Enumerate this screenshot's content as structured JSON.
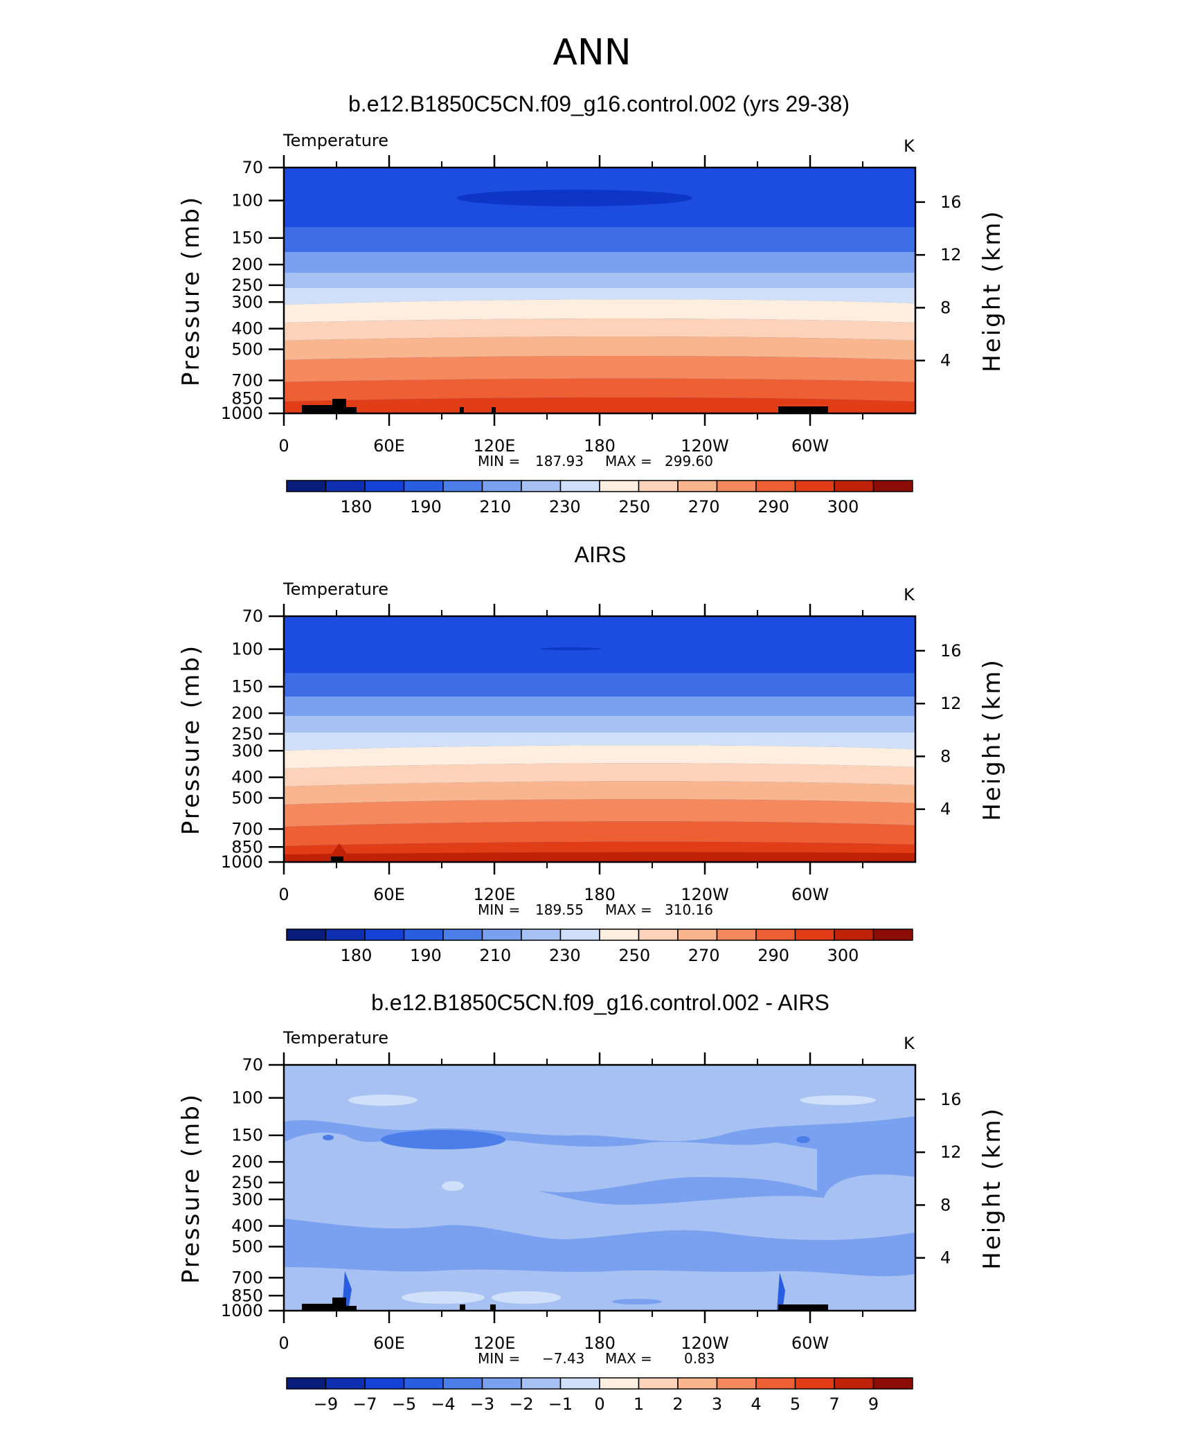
{
  "title": "ANN",
  "colors": {
    "temp_levels": [
      "#081d7a",
      "#0d2fb0",
      "#1442d6",
      "#2a5ee0",
      "#4b7ee8",
      "#7aa1ef",
      "#a7c1f3",
      "#cfe0f8",
      "#fdeee0",
      "#fcd3b8",
      "#f9b58e",
      "#f4895e",
      "#ee5f34",
      "#e13e18",
      "#c02208",
      "#8c0d05"
    ],
    "diff_levels": [
      "#081d7a",
      "#0d2fb0",
      "#1442d6",
      "#2a5ee0",
      "#4b7ee8",
      "#7aa1ef",
      "#a7c1f3",
      "#cfe0f8",
      "#fdeee0",
      "#fcd3b8",
      "#f9b58e",
      "#f4895e",
      "#ee5f34",
      "#e13e18",
      "#c02208",
      "#8c0d05"
    ]
  },
  "chart_data": [
    {
      "type": "heatmap",
      "title": "b.e12.B1850C5CN.f09_g16.control.002 (yrs 29-38)",
      "variable": "Temperature",
      "units": "K",
      "xlabel": "",
      "ylabel": "Pressure (mb)",
      "y2label": "Height (km)",
      "x_tick_labels": [
        "0",
        "60E",
        "120E",
        "180",
        "120W",
        "60W"
      ],
      "y_tick_labels": [
        "70",
        "100",
        "150",
        "200",
        "250",
        "300",
        "400",
        "500",
        "700",
        "850",
        "1000"
      ],
      "y2_tick_labels": [
        "16",
        "12",
        "8",
        "4"
      ],
      "min_label": "MIN =",
      "min_value": "187.93",
      "max_label": "MAX =",
      "max_value": "299.60",
      "colorbar_labels": [
        "180",
        "190",
        "210",
        "230",
        "250",
        "270",
        "290",
        "300"
      ],
      "zonal_mean_profile_K": {
        "pressure_mb": [
          70,
          100,
          150,
          200,
          250,
          300,
          400,
          500,
          700,
          850,
          1000
        ],
        "temperature": [
          200,
          196,
          208,
          218,
          225,
          232,
          247,
          258,
          274,
          283,
          292
        ]
      }
    },
    {
      "type": "heatmap",
      "title": "AIRS",
      "variable": "Temperature",
      "units": "K",
      "xlabel": "",
      "ylabel": "Pressure (mb)",
      "y2label": "Height (km)",
      "x_tick_labels": [
        "0",
        "60E",
        "120E",
        "180",
        "120W",
        "60W"
      ],
      "y_tick_labels": [
        "70",
        "100",
        "150",
        "200",
        "250",
        "300",
        "400",
        "500",
        "700",
        "850",
        "1000"
      ],
      "y2_tick_labels": [
        "16",
        "12",
        "8",
        "4"
      ],
      "min_label": "MIN =",
      "min_value": "189.55",
      "max_label": "MAX =",
      "max_value": "310.16",
      "colorbar_labels": [
        "180",
        "190",
        "210",
        "230",
        "250",
        "270",
        "290",
        "300"
      ],
      "zonal_mean_profile_K": {
        "pressure_mb": [
          70,
          100,
          150,
          200,
          250,
          300,
          400,
          500,
          700,
          850,
          1000
        ],
        "temperature": [
          202,
          198,
          211,
          220,
          227,
          236,
          250,
          261,
          278,
          287,
          298
        ]
      }
    },
    {
      "type": "heatmap",
      "title": "b.e12.B1850C5CN.f09_g16.control.002 - AIRS",
      "variable": "Temperature",
      "units": "K",
      "xlabel": "",
      "ylabel": "Pressure (mb)",
      "y2label": "Height (km)",
      "x_tick_labels": [
        "0",
        "60E",
        "120E",
        "180",
        "120W",
        "60W"
      ],
      "y_tick_labels": [
        "70",
        "100",
        "150",
        "200",
        "250",
        "300",
        "400",
        "500",
        "700",
        "850",
        "1000"
      ],
      "y2_tick_labels": [
        "16",
        "12",
        "8",
        "4"
      ],
      "min_label": "MIN =",
      "min_value": "−7.43",
      "max_label": "MAX =",
      "max_value": "0.83",
      "colorbar_labels": [
        "−9",
        "−7",
        "−5",
        "−4",
        "−3",
        "−2",
        "−1",
        "0",
        "1",
        "2",
        "3",
        "4",
        "5",
        "7",
        "9"
      ]
    }
  ]
}
